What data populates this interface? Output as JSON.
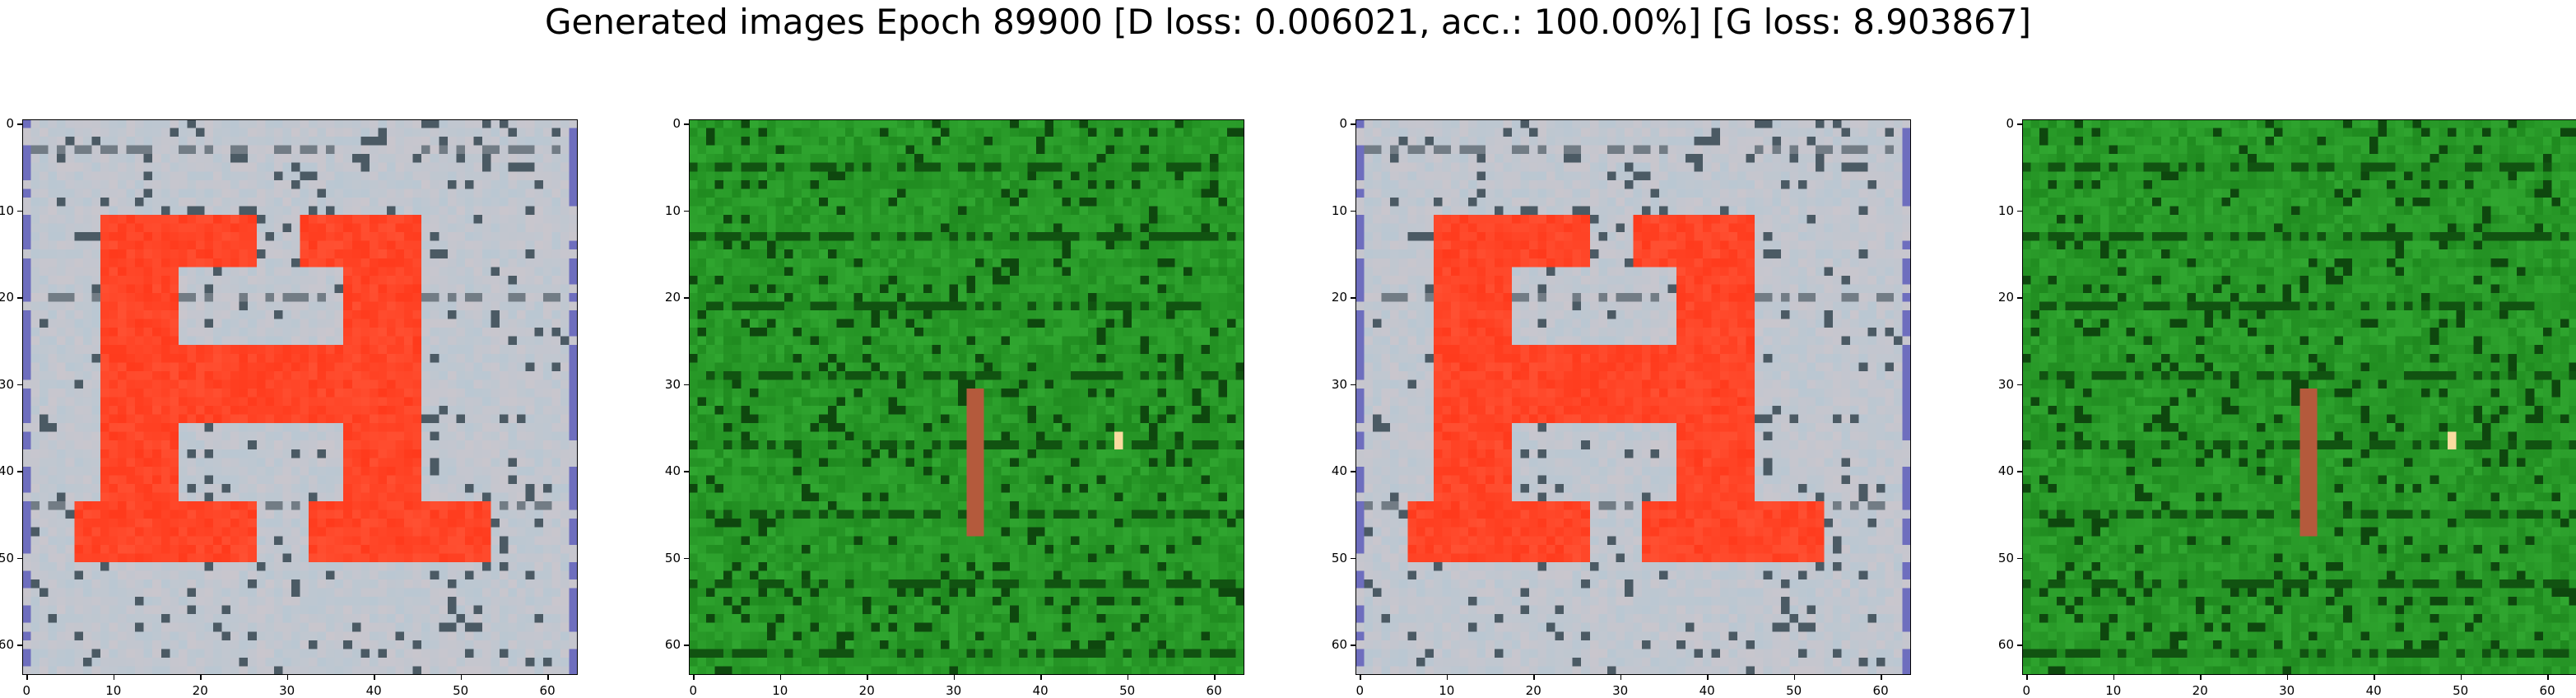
{
  "figure": {
    "title": "Generated images Epoch 89900 [D loss: 0.006021, acc.: 100.00%] [G loss: 8.903867]"
  },
  "panels": [
    {
      "kind": "red-letter-on-grey",
      "palette": {
        "bg": "#c9c6cd",
        "fg": "#ff3a1c",
        "grid": "#2b3f4a"
      }
    },
    {
      "kind": "green-noise",
      "palette": {
        "bg": "#1f8a1f",
        "fg": "#3fbf3f",
        "grid": "#0b3b0b"
      }
    },
    {
      "kind": "red-letter-on-grey",
      "palette": {
        "bg": "#c9c6cd",
        "fg": "#ff3a1c",
        "grid": "#2b3f4a"
      }
    },
    {
      "kind": "green-noise",
      "palette": {
        "bg": "#1f8a1f",
        "fg": "#3fbf3f",
        "grid": "#0b3b0b"
      }
    }
  ],
  "axis_ticks": {
    "x": [
      "0",
      "10",
      "20",
      "30",
      "40",
      "50",
      "60"
    ],
    "y": [
      "0",
      "10",
      "20",
      "30",
      "40",
      "50",
      "60"
    ],
    "range": [
      0,
      64
    ]
  }
}
